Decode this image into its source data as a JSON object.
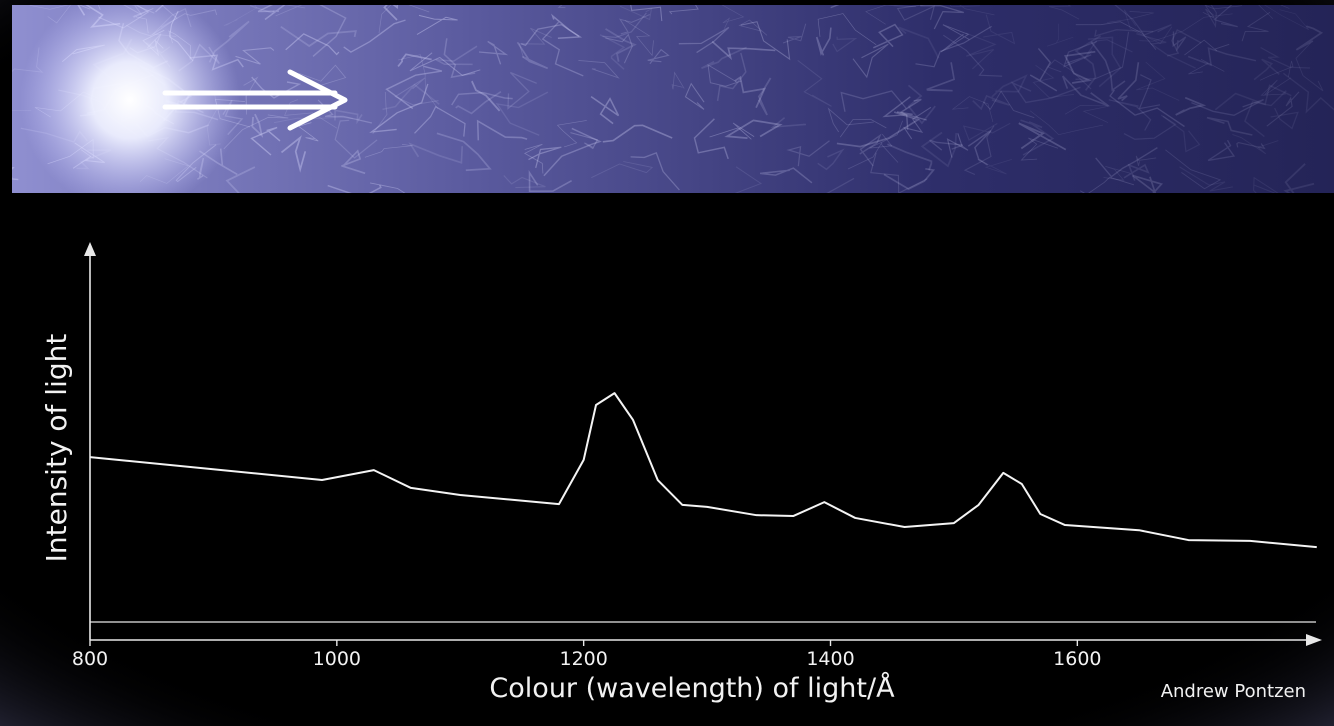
{
  "chart_data": {
    "type": "line",
    "x_label": "Colour (wavelength) of light/Å",
    "y_label": "Intensity of light",
    "credit": "Andrew Pontzen",
    "x": [
      800,
      988,
      1030,
      1060,
      1100,
      1180,
      1200,
      1210,
      1225,
      1240,
      1260,
      1280,
      1300,
      1340,
      1370,
      1395,
      1420,
      1460,
      1500,
      1520,
      1540,
      1555,
      1570,
      1590,
      1650,
      1690,
      1740,
      1794
    ],
    "series": [
      {
        "color": "#f4f4f4",
        "values": [
          46.3,
          40.5,
          43.0,
          38.5,
          36.7,
          34.4,
          45.6,
          59.5,
          62.5,
          55.7,
          40.5,
          34.2,
          33.7,
          31.6,
          31.4,
          34.9,
          30.9,
          28.6,
          29.6,
          34.2,
          42.3,
          39.5,
          31.9,
          29.1,
          27.8,
          25.3,
          25.1,
          23.5
        ]
      }
    ],
    "xlim": [
      800,
      1795
    ],
    "ylim": [
      0,
      100
    ],
    "xticks": [
      800,
      1000,
      1200,
      1400,
      1600
    ]
  }
}
